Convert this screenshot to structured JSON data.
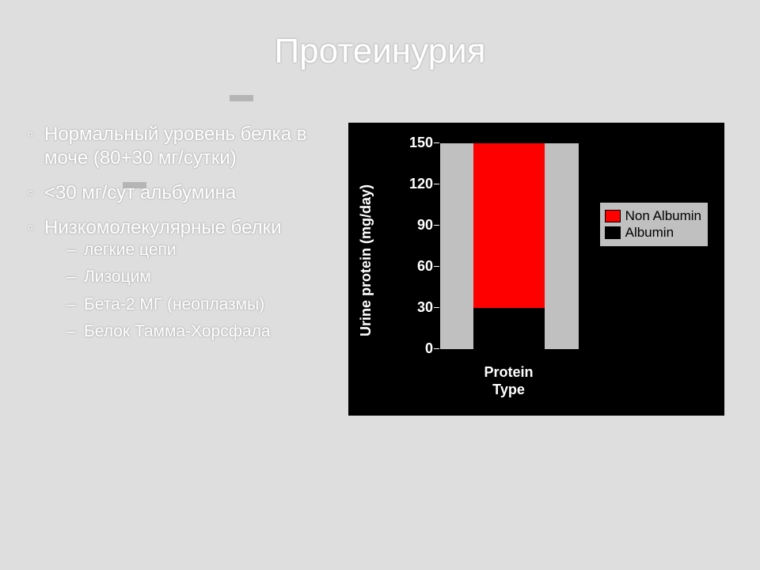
{
  "title": "Протеинурия",
  "bullets": {
    "items": [
      {
        "text": "Нормальный уровень белка в моче (80+30 мг/сутки)"
      },
      {
        "text": "<30 мг/сут альбумина"
      },
      {
        "text": "Низкомолекулярные белки"
      }
    ],
    "subitems": [
      {
        "text": "легкие цепи"
      },
      {
        "text": "Лизоцим"
      },
      {
        "text": "Бета-2 МГ (неоплазмы)"
      },
      {
        "text": "Белок Тамма-Хорсфала"
      }
    ]
  },
  "chart": {
    "type": "stacked-bar",
    "background_color": "#000000",
    "plot_background": "#c0c0c0",
    "text_color": "#ffffff",
    "axis_font_size": 18,
    "ylabel": "Urine protein (mg/day)",
    "xlabel": "Protein\nType",
    "ylim": [
      0,
      150
    ],
    "yticks": [
      0,
      30,
      60,
      90,
      120,
      150
    ],
    "bar_width": 0.5,
    "segments": [
      {
        "name": "Albumin",
        "value": 30,
        "color": "#000000"
      },
      {
        "name": "Non Albumin",
        "value": 120,
        "color": "#ff0000"
      }
    ],
    "legend": {
      "position": "right",
      "background": "#c0c0c0",
      "border": "#000000",
      "items": [
        {
          "label": "Non Albumin",
          "color": "#ff0000"
        },
        {
          "label": "Albumin",
          "color": "#000000"
        }
      ]
    }
  }
}
